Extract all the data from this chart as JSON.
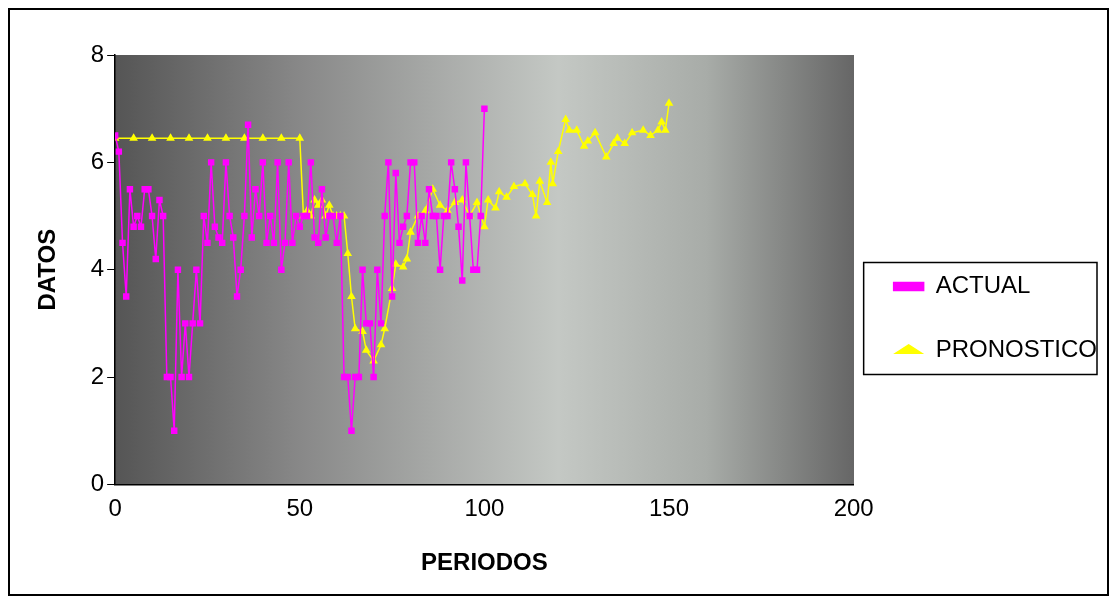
{
  "chart_data": {
    "type": "line",
    "xlabel": "PERIODOS",
    "ylabel": "DATOS",
    "xlim": [
      0,
      200
    ],
    "xticks": [
      0,
      50,
      100,
      150,
      200
    ],
    "ylim": [
      0,
      8
    ],
    "yticks": [
      0,
      2,
      4,
      6,
      8
    ],
    "grid": false,
    "legend": "right",
    "line_style": "solid",
    "series": [
      {
        "name": "ACTUAL",
        "color": "#ff00ff",
        "marker": "square",
        "x": [
          0,
          1,
          2,
          3,
          4,
          5,
          6,
          7,
          8,
          9,
          10,
          11,
          12,
          13,
          14,
          15,
          16,
          17,
          18,
          19,
          20,
          21,
          22,
          23,
          24,
          25,
          26,
          27,
          28,
          29,
          30,
          31,
          32,
          33,
          34,
          35,
          36,
          37,
          38,
          39,
          40,
          41,
          42,
          43,
          44,
          45,
          46,
          47,
          48,
          49,
          50,
          51,
          52,
          53,
          54,
          55,
          56,
          57,
          58,
          59,
          60,
          61,
          62,
          63,
          64,
          65,
          66,
          67,
          68,
          69,
          70,
          71,
          72,
          73,
          74,
          75,
          76,
          77,
          78,
          79,
          80,
          81,
          82,
          83,
          84,
          85,
          86,
          87,
          88,
          89,
          90,
          91,
          92,
          93,
          94,
          95,
          96,
          97,
          98,
          99,
          100
        ],
        "values": [
          6.5,
          6.2,
          4.5,
          3.5,
          5.5,
          4.8,
          5,
          4.8,
          5.5,
          5.5,
          5,
          4.2,
          5.3,
          5,
          2,
          2,
          1,
          4,
          2,
          3,
          2,
          3,
          4,
          3,
          5,
          4.5,
          6,
          4.8,
          4.6,
          4.5,
          6,
          5,
          4.6,
          3.5,
          4,
          5,
          6.7,
          4.6,
          5.5,
          5,
          6,
          4.5,
          5,
          4.5,
          6,
          4,
          4.5,
          6,
          4.5,
          5,
          4.8,
          5,
          5,
          6,
          4.6,
          4.5,
          5.5,
          4.6,
          5,
          5,
          4.5,
          5,
          2,
          2,
          1,
          2,
          2,
          4,
          3,
          3,
          2,
          4,
          3,
          5,
          6,
          3.5,
          5.8,
          4.5,
          4.8,
          5,
          6,
          6,
          4.5,
          5,
          4.5,
          5.5,
          5,
          5,
          4,
          5,
          5,
          6,
          5.5,
          4.8,
          3.8,
          6,
          5,
          4,
          4,
          5,
          7
        ]
      },
      {
        "name": "PRONOSTICO",
        "color": "#ffff00",
        "marker": "triangle",
        "x": [
          0,
          5,
          10,
          15,
          20,
          25,
          30,
          35,
          40,
          45,
          50,
          51,
          52,
          53,
          54,
          55,
          56,
          57,
          58,
          59,
          60,
          61,
          62,
          63,
          64,
          65,
          67,
          68,
          70,
          72,
          73,
          75,
          76,
          78,
          79,
          80,
          82,
          84,
          86,
          88,
          90,
          92,
          94,
          96,
          98,
          100,
          101,
          103,
          104,
          106,
          108,
          111,
          113,
          114,
          115,
          117,
          118,
          118.5,
          120,
          122,
          123,
          125,
          127,
          128,
          130,
          133,
          135,
          136,
          138,
          140,
          143,
          145,
          147,
          148,
          149,
          150
        ],
        "values": [
          6.45,
          6.45,
          6.45,
          6.45,
          6.45,
          6.45,
          6.45,
          6.45,
          6.45,
          6.45,
          6.45,
          5,
          5.1,
          5,
          5.3,
          5.2,
          5.3,
          5,
          5.2,
          5,
          5,
          5,
          5,
          4.3,
          3.5,
          2.9,
          2.85,
          2.5,
          2.3,
          2.6,
          2.9,
          3.65,
          4.1,
          4.05,
          4.2,
          4.7,
          5,
          5.1,
          5.5,
          5.2,
          5.1,
          5.25,
          5.3,
          5,
          5.25,
          4.8,
          5.3,
          5.15,
          5.45,
          5.35,
          5.55,
          5.6,
          5.4,
          5,
          5.65,
          5.25,
          6,
          5.6,
          6.2,
          6.8,
          6.6,
          6.6,
          6.3,
          6.4,
          6.55,
          6.1,
          6.35,
          6.45,
          6.35,
          6.55,
          6.6,
          6.5,
          6.6,
          6.75,
          6.6,
          7.1
        ]
      }
    ]
  }
}
